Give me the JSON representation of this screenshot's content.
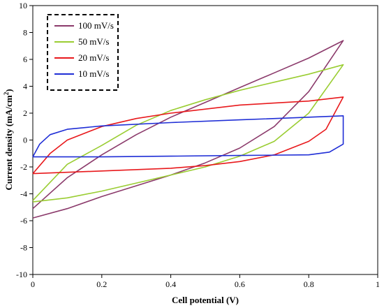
{
  "chart_data": {
    "type": "line",
    "title": "",
    "xlabel": "Cell potential (V)",
    "ylabel_main": "Current density (mA/cm",
    "ylabel_sup": "2",
    "ylabel_close": ")",
    "xlim": [
      0,
      1
    ],
    "ylim": [
      -10,
      10
    ],
    "xticks": [
      0,
      0.2,
      0.4,
      0.6,
      0.8,
      1
    ],
    "xtick_labels": [
      "0",
      "0.2",
      "0.4",
      "0.6",
      "0.8",
      "1"
    ],
    "yticks": [
      -10,
      -8,
      -6,
      -4,
      -2,
      0,
      2,
      4,
      6,
      8,
      10
    ],
    "ytick_labels": [
      "-10",
      "-8",
      "-6",
      "-4",
      "-2",
      "0",
      "2",
      "4",
      "6",
      "8",
      "10"
    ],
    "grid": false,
    "legend_position": "top-left",
    "series": [
      {
        "name": "100 mV/s",
        "color": "#8b3a6b",
        "points": [
          [
            0,
            -5.8
          ],
          [
            0.1,
            -5.1
          ],
          [
            0.2,
            -4.2
          ],
          [
            0.3,
            -3.4
          ],
          [
            0.4,
            -2.6
          ],
          [
            0.5,
            -1.7
          ],
          [
            0.6,
            -0.6
          ],
          [
            0.7,
            1.0
          ],
          [
            0.8,
            3.6
          ],
          [
            0.9,
            7.4
          ],
          [
            0.8,
            6.1
          ],
          [
            0.7,
            5.0
          ],
          [
            0.6,
            3.9
          ],
          [
            0.5,
            2.8
          ],
          [
            0.4,
            1.7
          ],
          [
            0.3,
            0.4
          ],
          [
            0.2,
            -1.1
          ],
          [
            0.1,
            -2.8
          ],
          [
            0,
            -5.1
          ]
        ]
      },
      {
        "name": "50 mV/s",
        "color": "#9acd32",
        "points": [
          [
            0,
            -4.6
          ],
          [
            0.1,
            -4.3
          ],
          [
            0.2,
            -3.8
          ],
          [
            0.3,
            -3.2
          ],
          [
            0.4,
            -2.6
          ],
          [
            0.5,
            -2.0
          ],
          [
            0.6,
            -1.2
          ],
          [
            0.7,
            -0.1
          ],
          [
            0.8,
            2.0
          ],
          [
            0.9,
            5.6
          ],
          [
            0.8,
            4.9
          ],
          [
            0.7,
            4.3
          ],
          [
            0.6,
            3.7
          ],
          [
            0.5,
            3.0
          ],
          [
            0.4,
            2.2
          ],
          [
            0.3,
            1.1
          ],
          [
            0.2,
            -0.4
          ],
          [
            0.1,
            -1.8
          ],
          [
            0,
            -4.5
          ]
        ]
      },
      {
        "name": "20 mV/s",
        "color": "#e8191c",
        "points": [
          [
            0,
            -2.5
          ],
          [
            0.2,
            -2.3
          ],
          [
            0.4,
            -2.1
          ],
          [
            0.5,
            -1.9
          ],
          [
            0.6,
            -1.6
          ],
          [
            0.7,
            -1.1
          ],
          [
            0.8,
            -0.1
          ],
          [
            0.85,
            0.8
          ],
          [
            0.9,
            3.2
          ],
          [
            0.8,
            2.9
          ],
          [
            0.6,
            2.6
          ],
          [
            0.4,
            2.0
          ],
          [
            0.3,
            1.6
          ],
          [
            0.2,
            1.0
          ],
          [
            0.1,
            0.0
          ],
          [
            0.05,
            -1.0
          ],
          [
            0,
            -2.5
          ]
        ]
      },
      {
        "name": "10 mV/s",
        "color": "#1f2ed6",
        "points": [
          [
            0,
            -1.25
          ],
          [
            0.2,
            -1.25
          ],
          [
            0.4,
            -1.2
          ],
          [
            0.6,
            -1.15
          ],
          [
            0.8,
            -1.1
          ],
          [
            0.86,
            -0.9
          ],
          [
            0.9,
            -0.3
          ],
          [
            0.9,
            1.8
          ],
          [
            0.8,
            1.7
          ],
          [
            0.6,
            1.5
          ],
          [
            0.4,
            1.3
          ],
          [
            0.2,
            1.05
          ],
          [
            0.1,
            0.8
          ],
          [
            0.05,
            0.4
          ],
          [
            0.02,
            -0.3
          ],
          [
            0,
            -1.25
          ]
        ]
      }
    ]
  }
}
